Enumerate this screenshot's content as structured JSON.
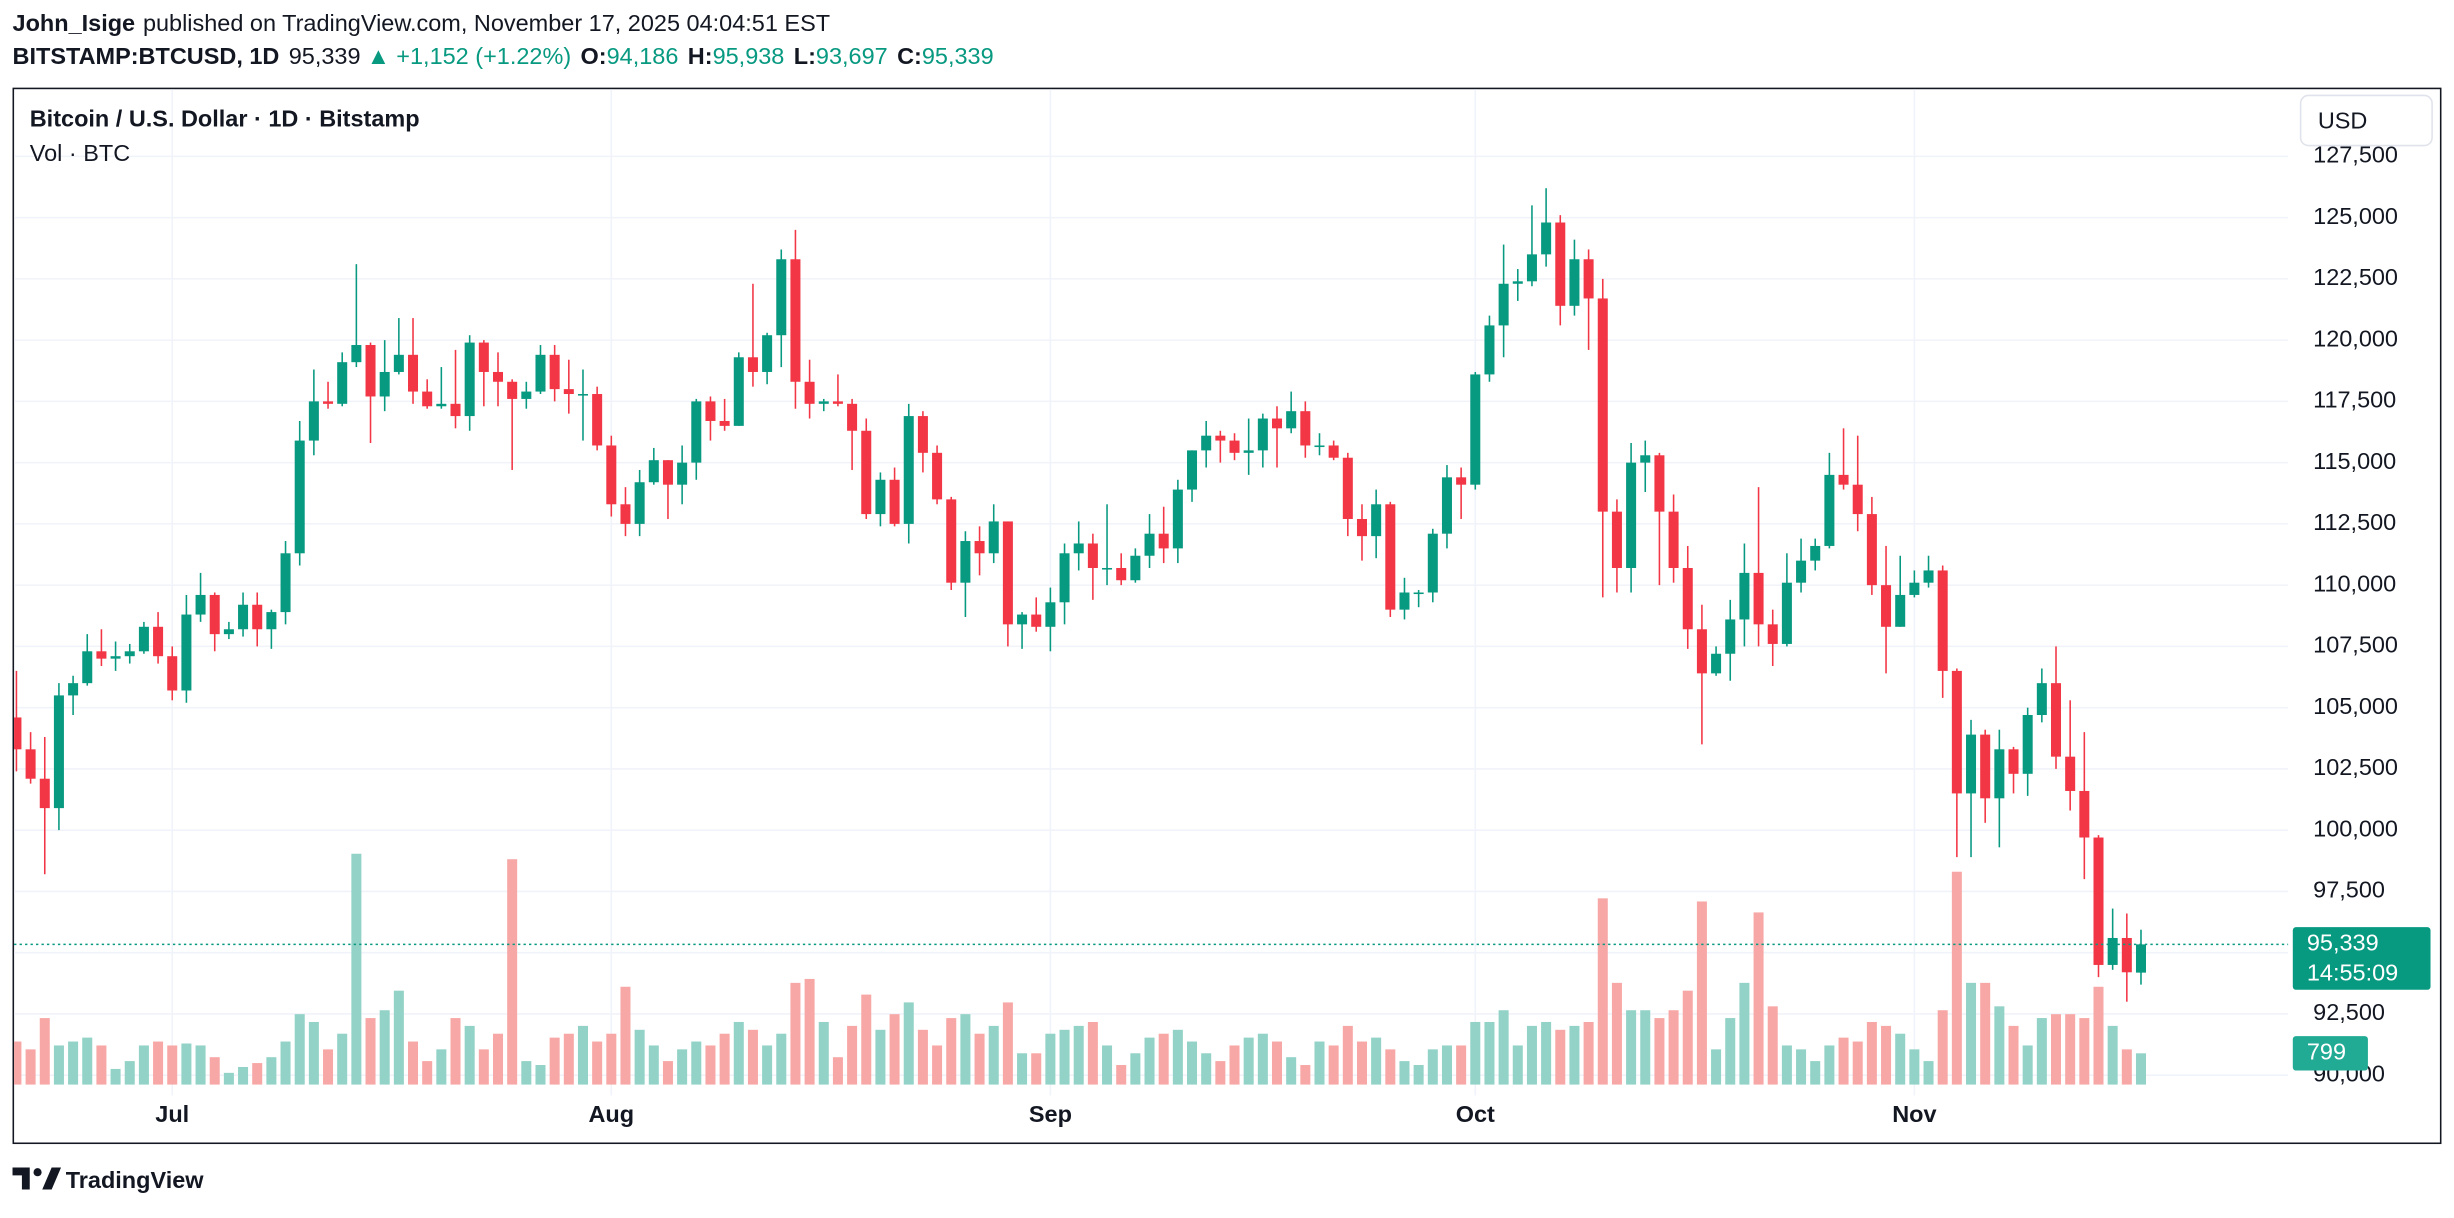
{
  "header": {
    "author": "John_Isige",
    "published": "published on TradingView.com, November 17, 2025 04:04:51 EST",
    "symbol": "BITSTAMP:BTCUSD, 1D",
    "price": "95,339",
    "arrow": "▲",
    "change": "+1,152 (+1.22%)",
    "ohlc": [
      {
        "label": "O:",
        "value": "94,186"
      },
      {
        "label": "H:",
        "value": "95,938"
      },
      {
        "label": "L:",
        "value": "93,697"
      },
      {
        "label": "C:",
        "value": "95,339"
      }
    ]
  },
  "chart_data": {
    "type": "candlestick",
    "title": "Bitcoin / U.S. Dollar · 1D · Bitstamp",
    "subtitle": "Vol · BTC",
    "currency": "USD",
    "up_color": "#089981",
    "down_color": "#f23645",
    "up_volume_color": "#92d2c7",
    "down_volume_color": "#f7a8a6",
    "grid": true,
    "ylim": [
      89170,
      130240
    ],
    "yticks": [
      {
        "value": 90000,
        "label": "90,000"
      },
      {
        "value": 92500,
        "label": "92,500"
      },
      {
        "value": 95000,
        "label": "95,000"
      },
      {
        "value": 97500,
        "label": "97,500"
      },
      {
        "value": 100000,
        "label": "100,000"
      },
      {
        "value": 102500,
        "label": "102,500"
      },
      {
        "value": 105000,
        "label": "105,000"
      },
      {
        "value": 107500,
        "label": "107,500"
      },
      {
        "value": 110000,
        "label": "110,000"
      },
      {
        "value": 112500,
        "label": "112,500"
      },
      {
        "value": 115000,
        "label": "115,000"
      },
      {
        "value": 117500,
        "label": "117,500"
      },
      {
        "value": 120000,
        "label": "120,000"
      },
      {
        "value": 122500,
        "label": "122,500"
      },
      {
        "value": 125000,
        "label": "125,000"
      },
      {
        "value": 127500,
        "label": "127,500"
      }
    ],
    "xticks": [
      {
        "value": 11,
        "label": "Jul"
      },
      {
        "value": 42,
        "label": "Aug"
      },
      {
        "value": 73,
        "label": "Sep"
      },
      {
        "value": 103,
        "label": "Oct"
      },
      {
        "value": 134,
        "label": "Nov"
      }
    ],
    "vlim": [
      0,
      6000
    ],
    "last_price": {
      "value": 95339,
      "label": "95,339"
    },
    "countdown": "14:55:09",
    "volume_value_label": "799",
    "ohlc": [
      [
        104600,
        106500,
        102400,
        103300
      ],
      [
        103300,
        104000,
        101900,
        102100
      ],
      [
        102100,
        103800,
        98200,
        100900
      ],
      [
        100900,
        106000,
        100000,
        105500
      ],
      [
        105500,
        106300,
        104700,
        106000
      ],
      [
        106000,
        108000,
        105900,
        107300
      ],
      [
        107300,
        108200,
        106700,
        107000
      ],
      [
        107000,
        107700,
        106500,
        107100
      ],
      [
        107100,
        107600,
        106800,
        107300
      ],
      [
        107300,
        108500,
        107200,
        108300
      ],
      [
        108300,
        108900,
        106800,
        107100
      ],
      [
        107100,
        107500,
        105300,
        105700
      ],
      [
        105700,
        109600,
        105200,
        108800
      ],
      [
        108800,
        110500,
        108500,
        109600
      ],
      [
        109600,
        109700,
        107300,
        108000
      ],
      [
        108000,
        108500,
        107800,
        108200
      ],
      [
        108200,
        109700,
        107900,
        109200
      ],
      [
        109200,
        109700,
        107500,
        108200
      ],
      [
        108200,
        109000,
        107400,
        108900
      ],
      [
        108900,
        111800,
        108400,
        111300
      ],
      [
        111300,
        116700,
        110800,
        115900
      ],
      [
        115900,
        118800,
        115300,
        117500
      ],
      [
        117500,
        118300,
        117200,
        117400
      ],
      [
        117400,
        119500,
        117300,
        119100
      ],
      [
        119100,
        123100,
        118900,
        119800
      ],
      [
        119800,
        119900,
        115800,
        117700
      ],
      [
        117700,
        120000,
        117100,
        118700
      ],
      [
        118700,
        120900,
        118600,
        119400
      ],
      [
        119400,
        120900,
        117400,
        117900
      ],
      [
        117900,
        118400,
        117200,
        117300
      ],
      [
        117300,
        118900,
        117200,
        117400
      ],
      [
        117400,
        119600,
        116400,
        116900
      ],
      [
        116900,
        120200,
        116300,
        119900
      ],
      [
        119900,
        120000,
        117300,
        118700
      ],
      [
        118700,
        119500,
        117300,
        118300
      ],
      [
        118300,
        118400,
        114700,
        117600
      ],
      [
        117600,
        118300,
        117200,
        117900
      ],
      [
        117900,
        119800,
        117800,
        119400
      ],
      [
        119400,
        119800,
        117500,
        118000
      ],
      [
        118000,
        119200,
        117000,
        117800
      ],
      [
        117800,
        118800,
        115900,
        117800
      ],
      [
        117800,
        118100,
        115500,
        115700
      ],
      [
        115700,
        116100,
        112800,
        113300
      ],
      [
        113300,
        114000,
        112000,
        112500
      ],
      [
        112500,
        114700,
        112000,
        114200
      ],
      [
        114200,
        115600,
        114100,
        115100
      ],
      [
        115100,
        115100,
        112700,
        114100
      ],
      [
        114100,
        115700,
        113300,
        115000
      ],
      [
        115000,
        117600,
        114300,
        117500
      ],
      [
        117500,
        117700,
        115900,
        116700
      ],
      [
        116700,
        117600,
        116300,
        116500
      ],
      [
        116500,
        119500,
        116500,
        119300
      ],
      [
        119300,
        122300,
        118100,
        118700
      ],
      [
        118700,
        120300,
        118200,
        120200
      ],
      [
        120200,
        123700,
        118900,
        123300
      ],
      [
        123300,
        124500,
        117200,
        118300
      ],
      [
        118300,
        119200,
        116800,
        117400
      ],
      [
        117400,
        117600,
        117100,
        117500
      ],
      [
        117500,
        118600,
        117300,
        117400
      ],
      [
        117400,
        117600,
        114700,
        116300
      ],
      [
        116300,
        116800,
        112700,
        112900
      ],
      [
        112900,
        114600,
        112400,
        114300
      ],
      [
        114300,
        114800,
        112400,
        112500
      ],
      [
        112500,
        117400,
        111700,
        116900
      ],
      [
        116900,
        117100,
        114600,
        115400
      ],
      [
        115400,
        115700,
        113300,
        113500
      ],
      [
        113500,
        113600,
        109800,
        110100
      ],
      [
        110100,
        112200,
        108700,
        111800
      ],
      [
        111800,
        112400,
        110400,
        111300
      ],
      [
        111300,
        113300,
        110900,
        112600
      ],
      [
        112600,
        112600,
        107500,
        108400
      ],
      [
        108400,
        108900,
        107400,
        108800
      ],
      [
        108800,
        109500,
        108100,
        108300
      ],
      [
        108300,
        109900,
        107300,
        109300
      ],
      [
        109300,
        111700,
        108400,
        111300
      ],
      [
        111300,
        112600,
        110600,
        111700
      ],
      [
        111700,
        112100,
        109400,
        110700
      ],
      [
        110700,
        113300,
        110000,
        110700
      ],
      [
        110700,
        111300,
        110000,
        110200
      ],
      [
        110200,
        111500,
        110100,
        111200
      ],
      [
        111200,
        112900,
        110700,
        112100
      ],
      [
        112100,
        113200,
        110900,
        111500
      ],
      [
        111500,
        114300,
        110900,
        113900
      ],
      [
        113900,
        115500,
        113400,
        115500
      ],
      [
        115500,
        116700,
        114800,
        116100
      ],
      [
        116100,
        116300,
        115000,
        115900
      ],
      [
        115900,
        116200,
        115100,
        115400
      ],
      [
        115400,
        116800,
        114500,
        115500
      ],
      [
        115500,
        117000,
        114800,
        116800
      ],
      [
        116800,
        117300,
        114800,
        116400
      ],
      [
        116400,
        117900,
        116200,
        117100
      ],
      [
        117100,
        117500,
        115200,
        115700
      ],
      [
        115700,
        116200,
        115300,
        115700
      ],
      [
        115700,
        115900,
        115100,
        115200
      ],
      [
        115200,
        115400,
        112000,
        112700
      ],
      [
        112700,
        113300,
        111000,
        112000
      ],
      [
        112000,
        113900,
        111100,
        113300
      ],
      [
        113300,
        113400,
        108700,
        109000
      ],
      [
        109000,
        110300,
        108600,
        109700
      ],
      [
        109700,
        109800,
        109100,
        109700
      ],
      [
        109700,
        112300,
        109300,
        112100
      ],
      [
        112100,
        114900,
        111500,
        114400
      ],
      [
        114400,
        114800,
        112700,
        114100
      ],
      [
        114100,
        118700,
        113900,
        118600
      ],
      [
        118600,
        121000,
        118300,
        120600
      ],
      [
        120600,
        123900,
        119300,
        122300
      ],
      [
        122300,
        122900,
        121600,
        122400
      ],
      [
        122400,
        125500,
        122200,
        123500
      ],
      [
        123500,
        126200,
        123000,
        124800
      ],
      [
        124800,
        125100,
        120600,
        121400
      ],
      [
        121400,
        124100,
        121000,
        123300
      ],
      [
        123300,
        123700,
        119600,
        121700
      ],
      [
        121700,
        122500,
        109500,
        113000
      ],
      [
        113000,
        113500,
        109700,
        110700
      ],
      [
        110700,
        115800,
        109700,
        115000
      ],
      [
        115000,
        115900,
        113800,
        115300
      ],
      [
        115300,
        115400,
        110000,
        113000
      ],
      [
        113000,
        113700,
        110100,
        110700
      ],
      [
        110700,
        111600,
        107400,
        108200
      ],
      [
        108200,
        109200,
        103500,
        106400
      ],
      [
        106400,
        107500,
        106300,
        107200
      ],
      [
        107200,
        109400,
        106100,
        108600
      ],
      [
        108600,
        111700,
        107500,
        110500
      ],
      [
        110500,
        114000,
        107500,
        108400
      ],
      [
        108400,
        109000,
        106700,
        107600
      ],
      [
        107600,
        111300,
        107500,
        110100
      ],
      [
        110100,
        111900,
        109700,
        111000
      ],
      [
        111000,
        111900,
        110600,
        111600
      ],
      [
        111600,
        115400,
        111500,
        114500
      ],
      [
        114500,
        116400,
        113900,
        114100
      ],
      [
        114100,
        116100,
        112200,
        112900
      ],
      [
        112900,
        113600,
        109600,
        110000
      ],
      [
        110000,
        111600,
        106400,
        108300
      ],
      [
        108300,
        111200,
        108300,
        109600
      ],
      [
        109600,
        110600,
        109500,
        110100
      ],
      [
        110100,
        111200,
        109900,
        110600
      ],
      [
        110600,
        110800,
        105400,
        106500
      ],
      [
        106500,
        106600,
        98900,
        101500
      ],
      [
        101500,
        104500,
        98900,
        103900
      ],
      [
        103900,
        104100,
        100300,
        101300
      ],
      [
        101300,
        104100,
        99300,
        103300
      ],
      [
        103300,
        103400,
        101500,
        102300
      ],
      [
        102300,
        105000,
        101400,
        104700
      ],
      [
        104700,
        106600,
        104400,
        106000
      ],
      [
        106000,
        107500,
        102500,
        103000
      ],
      [
        103000,
        105300,
        100800,
        101600
      ],
      [
        101600,
        104000,
        98000,
        99700
      ],
      [
        99700,
        99800,
        94000,
        94500
      ],
      [
        94500,
        96800,
        94300,
        95600
      ],
      [
        95600,
        96600,
        93000,
        94200
      ],
      [
        94186,
        95938,
        93697,
        95339
      ]
    ],
    "volume": [
      1100,
      900,
      1700,
      1000,
      1100,
      1200,
      1000,
      400,
      600,
      1000,
      1100,
      1000,
      1050,
      1000,
      700,
      300,
      450,
      550,
      700,
      1100,
      1800,
      1600,
      900,
      1300,
      5900,
      1700,
      1900,
      2400,
      1100,
      600,
      900,
      1700,
      1500,
      900,
      1300,
      5760,
      600,
      500,
      1200,
      1300,
      1500,
      1100,
      1300,
      2500,
      1400,
      1000,
      600,
      900,
      1100,
      1000,
      1300,
      1600,
      1400,
      1000,
      1300,
      2600,
      2700,
      1600,
      700,
      1500,
      2300,
      1400,
      1800,
      2100,
      1400,
      1000,
      1700,
      1800,
      1300,
      1500,
      2100,
      800,
      800,
      1300,
      1400,
      1500,
      1600,
      1000,
      500,
      800,
      1200,
      1300,
      1400,
      1100,
      800,
      600,
      1000,
      1200,
      1300,
      1100,
      700,
      500,
      1100,
      1000,
      1500,
      1100,
      1200,
      900,
      600,
      500,
      900,
      1000,
      1000,
      1600,
      1600,
      1900,
      1000,
      1500,
      1600,
      1400,
      1500,
      1600,
      4760,
      2600,
      1900,
      1900,
      1700,
      1900,
      2400,
      4680,
      900,
      1700,
      2600,
      4400,
      2000,
      1000,
      900,
      600,
      1000,
      1200,
      1100,
      1600,
      1500,
      1300,
      900,
      600,
      1900,
      5440,
      2600,
      2600,
      2000,
      1500,
      1000,
      1700,
      1800,
      1800,
      1700,
      2500,
      1500,
      900,
      799
    ]
  },
  "footer": {
    "brand": "TradingView"
  }
}
